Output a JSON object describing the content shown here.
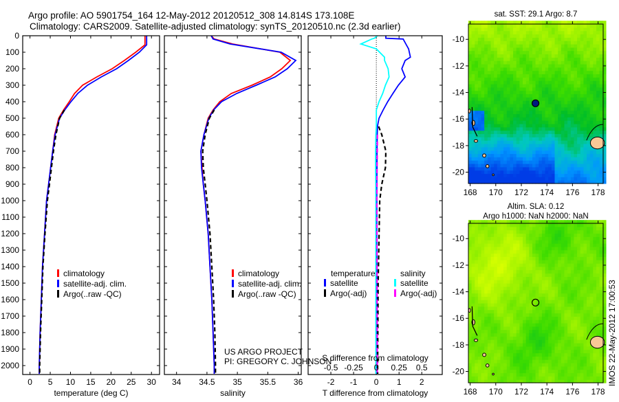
{
  "title": {
    "line1": "Argo profile: AO 5901754_164 12-May-2012 20120512_308 14.814S 173.108E",
    "line2": "Climatology: CARS2009. Satellite-adjusted climatology: synTS_20120510.nc (2.3d earlier)"
  },
  "colors": {
    "clim": "#ff0000",
    "sat": "#0000ff",
    "argo": "#000000",
    "sat_s": "#00ffff",
    "argo_s": "#ff00ff",
    "land": "#f9c896"
  },
  "depth_ticks": [
    0,
    100,
    200,
    300,
    400,
    500,
    600,
    700,
    800,
    900,
    1000,
    1100,
    1200,
    1300,
    1400,
    1500,
    1600,
    1700,
    1800,
    1900,
    2000
  ],
  "credit": {
    "line1": "US ARGO PROJECT",
    "line2": "PI: GREGORY C. JOHNSON"
  },
  "timestamp": "IMOS 22-May-2012 17:00:53",
  "chart_data": [
    {
      "type": "line",
      "name": "temperature-profile",
      "xlabel": "temperature (deg C)",
      "ylabel": "depth",
      "xlim": [
        -1.8,
        32
      ],
      "ylim": [
        2054,
        0
      ],
      "xticks": [
        "0",
        "5",
        "10",
        "15",
        "20",
        "25",
        "30"
      ],
      "xtick_values": [
        0,
        5,
        10,
        15,
        20,
        25,
        30
      ],
      "legend": [
        "climatology",
        "satellite-adj. clim.",
        "Argo(..raw -QC)"
      ],
      "legend_position": "lower-center",
      "depth": [
        0,
        55,
        100,
        150,
        200,
        250,
        300,
        350,
        400,
        450,
        500,
        600,
        700,
        800,
        900,
        1000,
        1200,
        1400,
        1600,
        1800,
        2000,
        2050
      ],
      "series": [
        {
          "name": "climatology",
          "color": "clim",
          "values": [
            28.4,
            28.4,
            26.1,
            23.3,
            20.3,
            16.5,
            13.0,
            11.0,
            9.7,
            8.3,
            7.1,
            6.1,
            5.6,
            5.1,
            4.6,
            4.1,
            3.6,
            3.1,
            2.8,
            2.5,
            2.3,
            2.3
          ]
        },
        {
          "name": "satellite-adj. clim.",
          "color": "sat",
          "values": [
            28.8,
            28.8,
            27.0,
            24.3,
            21.4,
            17.6,
            14.2,
            11.8,
            10.1,
            8.6,
            7.3,
            6.2,
            5.6,
            5.1,
            4.6,
            4.1,
            3.6,
            3.1,
            2.8,
            2.5,
            2.3,
            2.3
          ]
        },
        {
          "name": "Argo(..raw -QC)",
          "color": "argo",
          "dashed": true,
          "values": [
            null,
            null,
            null,
            null,
            null,
            null,
            null,
            null,
            null,
            8.5,
            7.3,
            6.4,
            5.8,
            5.3,
            4.8,
            4.3,
            3.7,
            3.2,
            2.9,
            2.6,
            2.4,
            2.4
          ]
        }
      ]
    },
    {
      "type": "line",
      "name": "salinity-profile",
      "xlabel": "salinity",
      "ylabel": "depth",
      "xlim": [
        33.8,
        36.05
      ],
      "ylim": [
        2054,
        0
      ],
      "xticks": [
        "34",
        "34.5",
        "35",
        "35.5",
        "36"
      ],
      "xtick_values": [
        34,
        34.5,
        35,
        35.5,
        36
      ],
      "legend": [
        "climatology",
        "satellite-adj. clim.",
        "Argo(..raw -QC)"
      ],
      "legend_position": "lower-right",
      "depth": [
        0,
        20,
        50,
        100,
        150,
        200,
        250,
        300,
        350,
        400,
        450,
        500,
        600,
        700,
        800,
        900,
        1000,
        1200,
        1400,
        1600,
        1800,
        2000,
        2050
      ],
      "series": [
        {
          "name": "climatology",
          "color": "clim",
          "values": [
            34.57,
            34.62,
            34.92,
            35.7,
            35.87,
            35.73,
            35.54,
            35.24,
            34.9,
            34.71,
            34.6,
            34.52,
            34.45,
            34.4,
            34.42,
            34.44,
            34.47,
            34.52,
            34.55,
            34.58,
            34.6,
            34.62,
            34.62
          ]
        },
        {
          "name": "satellite-adj. clim.",
          "color": "sat",
          "values": [
            34.57,
            34.6,
            34.88,
            35.72,
            35.96,
            35.82,
            35.62,
            35.31,
            34.99,
            34.74,
            34.61,
            34.53,
            34.45,
            34.4,
            34.41,
            34.44,
            34.47,
            34.52,
            34.55,
            34.58,
            34.6,
            34.62,
            34.62
          ]
        },
        {
          "name": "Argo(..raw -QC)",
          "color": "argo",
          "dashed": true,
          "values": [
            null,
            null,
            null,
            null,
            null,
            null,
            null,
            null,
            null,
            null,
            34.62,
            34.54,
            34.47,
            34.43,
            34.44,
            34.47,
            34.5,
            34.55,
            34.58,
            34.61,
            34.63,
            34.64,
            34.64
          ]
        }
      ]
    },
    {
      "type": "line",
      "name": "difference-profile",
      "xlabel": "T difference from climatology",
      "x2label": "S difference from climatology",
      "xlim": [
        -3,
        2.9
      ],
      "ylim": [
        2054,
        0
      ],
      "xticks": [
        "-2",
        "-1",
        "0",
        "1",
        "2"
      ],
      "xtick_values": [
        -2,
        -1,
        0,
        1,
        2
      ],
      "x2ticks": [
        "-0.5",
        "-0.25",
        "0",
        "0.25",
        "0.5"
      ],
      "x2tick_values": [
        -0.5,
        -0.25,
        0,
        0.25,
        0.5
      ],
      "s_to_t_factor": 4,
      "legend_headers": [
        "temperature",
        "salinity"
      ],
      "legend": [
        "satellite",
        "Argo(-adj)",
        "satellite",
        "Argo(-adj)"
      ],
      "legend_position": "lower-center",
      "depth": [
        0,
        15,
        20,
        50,
        80,
        130,
        150,
        200,
        250,
        300,
        350,
        400,
        450,
        500,
        550,
        600,
        700,
        800,
        900,
        1000,
        1500,
        2000,
        2050
      ],
      "series": [
        {
          "name": "T satellite",
          "color": "sat",
          "units": "T",
          "values": [
            0.42,
            0.42,
            1.18,
            1.3,
            1.42,
            1.5,
            1.27,
            1.12,
            1.27,
            0.97,
            0.73,
            0.5,
            0.3,
            0.12,
            0.05,
            0.04,
            0.03,
            0.03,
            0.02,
            0.02,
            0.02,
            0.02,
            0.02
          ]
        },
        {
          "name": "T Argo(-adj)",
          "color": "argo",
          "dashed": true,
          "units": "T",
          "values": [
            null,
            null,
            null,
            null,
            null,
            null,
            null,
            null,
            null,
            null,
            null,
            null,
            null,
            null,
            0.1,
            0.24,
            0.42,
            0.4,
            0.24,
            0.15,
            0.08,
            0.06,
            0.06
          ]
        },
        {
          "name": "S satellite",
          "color": "sat_s",
          "units": "S",
          "values": [
            0.012,
            -0.02,
            -0.05,
            -0.17,
            0.0,
            0.09,
            0.09,
            0.13,
            0.14,
            0.1,
            0.07,
            0.03,
            0.0,
            0.0,
            0.0,
            -0.005,
            -0.008,
            -0.008,
            -0.006,
            -0.005,
            -0.005,
            -0.005,
            -0.005
          ]
        },
        {
          "name": "S Argo(-adj)",
          "color": "argo_s",
          "dashed": true,
          "units": "S",
          "values": [
            null,
            null,
            null,
            null,
            null,
            null,
            null,
            null,
            null,
            null,
            null,
            null,
            null,
            null,
            null,
            0.012,
            0.01,
            0.008,
            0.007,
            0.006,
            0.008,
            0.01,
            0.01
          ]
        }
      ]
    },
    {
      "type": "heatmap",
      "name": "sst-map",
      "title": "sat. SST: 29.1 Argo: 8.7",
      "xlim": [
        167.86,
        178.4
      ],
      "ylim": [
        -20.85,
        -8.85
      ],
      "xticks": [
        "168",
        "170",
        "172",
        "174",
        "176",
        "178"
      ],
      "xtick_values": [
        168,
        170,
        172,
        174,
        176,
        178
      ],
      "yticks": [
        "-10",
        "-12",
        "-14",
        "-16",
        "-18",
        "-20"
      ],
      "ytick_values": [
        -10,
        -12,
        -14,
        -16,
        -18,
        -20
      ],
      "argo_position": [
        173.108,
        -14.814
      ],
      "marker": "filled"
    },
    {
      "type": "heatmap",
      "name": "sla-map",
      "title": "Altim. SLA: 0.12",
      "subtitle": "Argo h1000: NaN h2000: NaN",
      "xlim": [
        167.86,
        178.4
      ],
      "ylim": [
        -20.85,
        -8.85
      ],
      "xticks": [
        "168",
        "170",
        "172",
        "174",
        "176",
        "178"
      ],
      "xtick_values": [
        168,
        170,
        172,
        174,
        176,
        178
      ],
      "yticks": [
        "-10",
        "-12",
        "-14",
        "-16",
        "-18",
        "-20"
      ],
      "ytick_values": [
        -10,
        -12,
        -14,
        -16,
        -18,
        -20
      ],
      "argo_position": [
        173.108,
        -14.814
      ],
      "marker": "open"
    }
  ]
}
